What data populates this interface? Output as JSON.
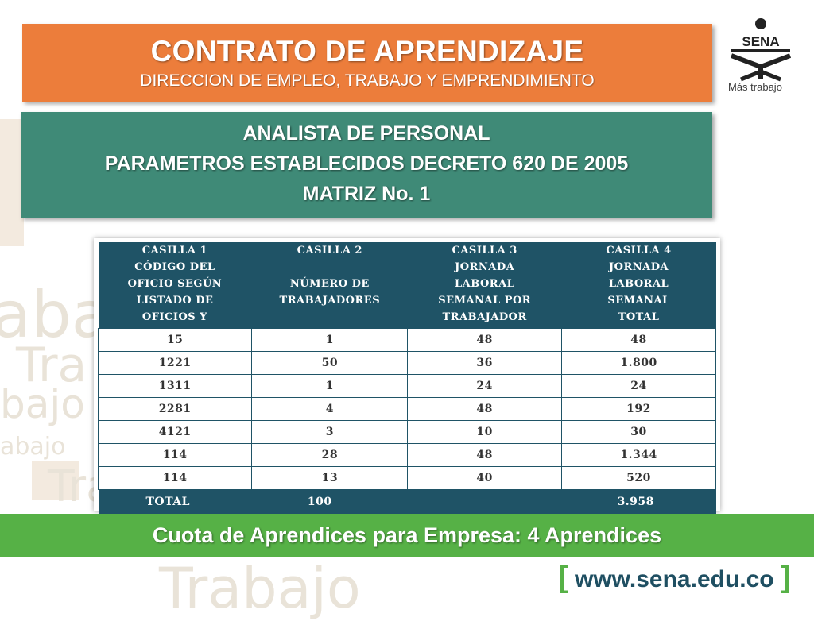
{
  "header": {
    "title": "CONTRATO DE APRENDIZAJE",
    "subtitle": "DIRECCION DE EMPLEO, TRABAJO Y EMPRENDIMIENTO"
  },
  "logo": {
    "name": "SENA",
    "tagline": "Más trabajo"
  },
  "section": {
    "line1": "ANALISTA DE PERSONAL",
    "line2": "PARAMETROS ESTABLECIDOS DECRETO 620 DE 2005",
    "line3": "MATRIZ No. 1"
  },
  "table": {
    "headers": [
      [
        "CASILLA 1",
        "CÓDIGO DEL",
        "OFICIO SEGÚN",
        "LISTADO DE",
        "OFICIOS Y"
      ],
      [
        "CASILLA 2",
        "",
        "NÚMERO DE",
        "TRABAJADORES"
      ],
      [
        "CASILLA 3",
        "JORNADA",
        "LABORAL",
        "SEMANAL POR",
        "TRABAJADOR"
      ],
      [
        "CASILLA 4",
        "JORNADA",
        "LABORAL",
        "SEMANAL",
        "TOTAL"
      ]
    ],
    "rows": [
      [
        "15",
        "1",
        "48",
        "48"
      ],
      [
        "1221",
        "50",
        "36",
        "1.800"
      ],
      [
        "1311",
        "1",
        "24",
        "24"
      ],
      [
        "2281",
        "4",
        "48",
        "192"
      ],
      [
        "4121",
        "3",
        "10",
        "30"
      ],
      [
        "114",
        "28",
        "48",
        "1.344"
      ],
      [
        "114",
        "13",
        "40",
        "520"
      ]
    ],
    "total": {
      "label": "TOTAL",
      "workers": "100",
      "hours": "3.958"
    }
  },
  "banner": {
    "text": "Cuota de Aprendices para Empresa: 4 Aprendices"
  },
  "footer": {
    "url": "www.sena.edu.co"
  },
  "colors": {
    "orange": "#ec7d3b",
    "teal": "#3f8a77",
    "navy": "#1f5366",
    "green": "#56b146"
  }
}
